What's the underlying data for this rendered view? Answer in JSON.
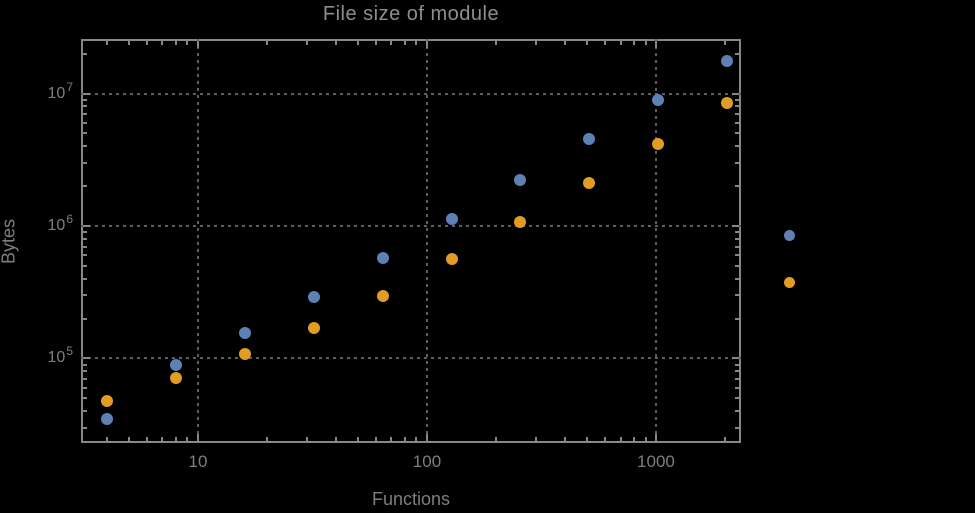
{
  "chart_data": {
    "type": "scatter",
    "title": "File size of module",
    "xlabel": "Functions",
    "ylabel": "Bytes",
    "x_scale": "log",
    "y_scale": "log",
    "xlim": [
      3.085,
      2351
    ],
    "ylim": [
      23000,
      25800000
    ],
    "grid": "dotted gridlines at decade ticks, frame on all four sides with mirrored ticks",
    "x": [
      4,
      8,
      16,
      32,
      64,
      128,
      256,
      512,
      1024,
      2048
    ],
    "series": [
      {
        "name": "series-blue",
        "color": "#5E81B5",
        "values": [
          35000,
          90000,
          155000,
          290000,
          570000,
          1130000,
          2220000,
          4500000,
          8900000,
          17500000
        ]
      },
      {
        "name": "series-orange",
        "color": "#E19C24",
        "values": [
          48000,
          71000,
          108000,
          170000,
          295000,
          560000,
          1070000,
          2100000,
          4150000,
          8500000
        ]
      }
    ],
    "x_ticks": {
      "major": [
        10,
        100,
        1000
      ],
      "major_labels": [
        "10",
        "100",
        "1000"
      ]
    },
    "y_ticks": {
      "major": [
        100000,
        1000000,
        10000000
      ],
      "major_labels": [
        {
          "mantissa": "10",
          "exponent": "5"
        },
        {
          "mantissa": "10",
          "exponent": "6"
        },
        {
          "mantissa": "10",
          "exponent": "7"
        }
      ]
    },
    "legend": {
      "position": "right-outside",
      "markers": [
        {
          "name": "legend-marker-blue",
          "color": "#5E81B5"
        },
        {
          "name": "legend-marker-orange",
          "color": "#E19C24"
        }
      ]
    }
  },
  "colors": {
    "background": "#000000",
    "frame": "#878787",
    "gridline": "#5e5e5e",
    "tick_label": "#7e7e7e",
    "title": "#8e8e8e",
    "series_blue": "#5E81B5",
    "series_orange": "#E19C24"
  }
}
